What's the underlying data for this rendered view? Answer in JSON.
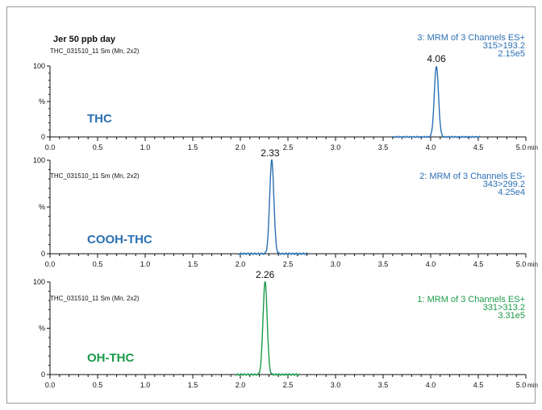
{
  "chart_data": {
    "type": "line",
    "title": "Jer 50 ppb day",
    "x_unit": "min",
    "xlim": [
      0.0,
      5.0
    ],
    "x_ticks": [
      "0.0",
      "0.5",
      "1.0",
      "1.5",
      "2.0",
      "2.5",
      "3.0",
      "3.5",
      "4.0",
      "4.5",
      "5.0"
    ],
    "y_ticks": [
      "0",
      "%",
      "100"
    ],
    "panels": [
      {
        "header": "THC_031510_11 Sm (Mn, 2x2)",
        "info": [
          "3: MRM of 3 Channels ES+",
          "315>193.2",
          "2.15e5"
        ],
        "compound": "THC",
        "peak_label": "4.06",
        "color": "#2a6fb2",
        "trace_range": [
          3.6,
          4.52
        ],
        "peak": {
          "rt": 4.06,
          "height": 100,
          "width": 0.022
        }
      },
      {
        "header": "THC_031510_11 Sm (Mn, 2x2)",
        "info": [
          "2: MRM of 3 Channels ES-",
          "343>299.2",
          "4.25e4"
        ],
        "compound": "COOH-THC",
        "peak_label": "2.33",
        "color": "#2a6fb2",
        "trace_range": [
          1.98,
          2.7
        ],
        "peak": {
          "rt": 2.33,
          "height": 100,
          "width": 0.022
        }
      },
      {
        "header": "THC_031510_11 Sm (Mn, 2x2)",
        "info": [
          "1: MRM of 3 Channels ES+",
          "331>313.2",
          "3.31e5"
        ],
        "compound": "OH-THC",
        "peak_label": "2.26",
        "color": "#1b9a4a",
        "trace_range": [
          1.95,
          2.62
        ],
        "peak": {
          "rt": 2.26,
          "height": 100,
          "width": 0.022
        }
      }
    ]
  }
}
